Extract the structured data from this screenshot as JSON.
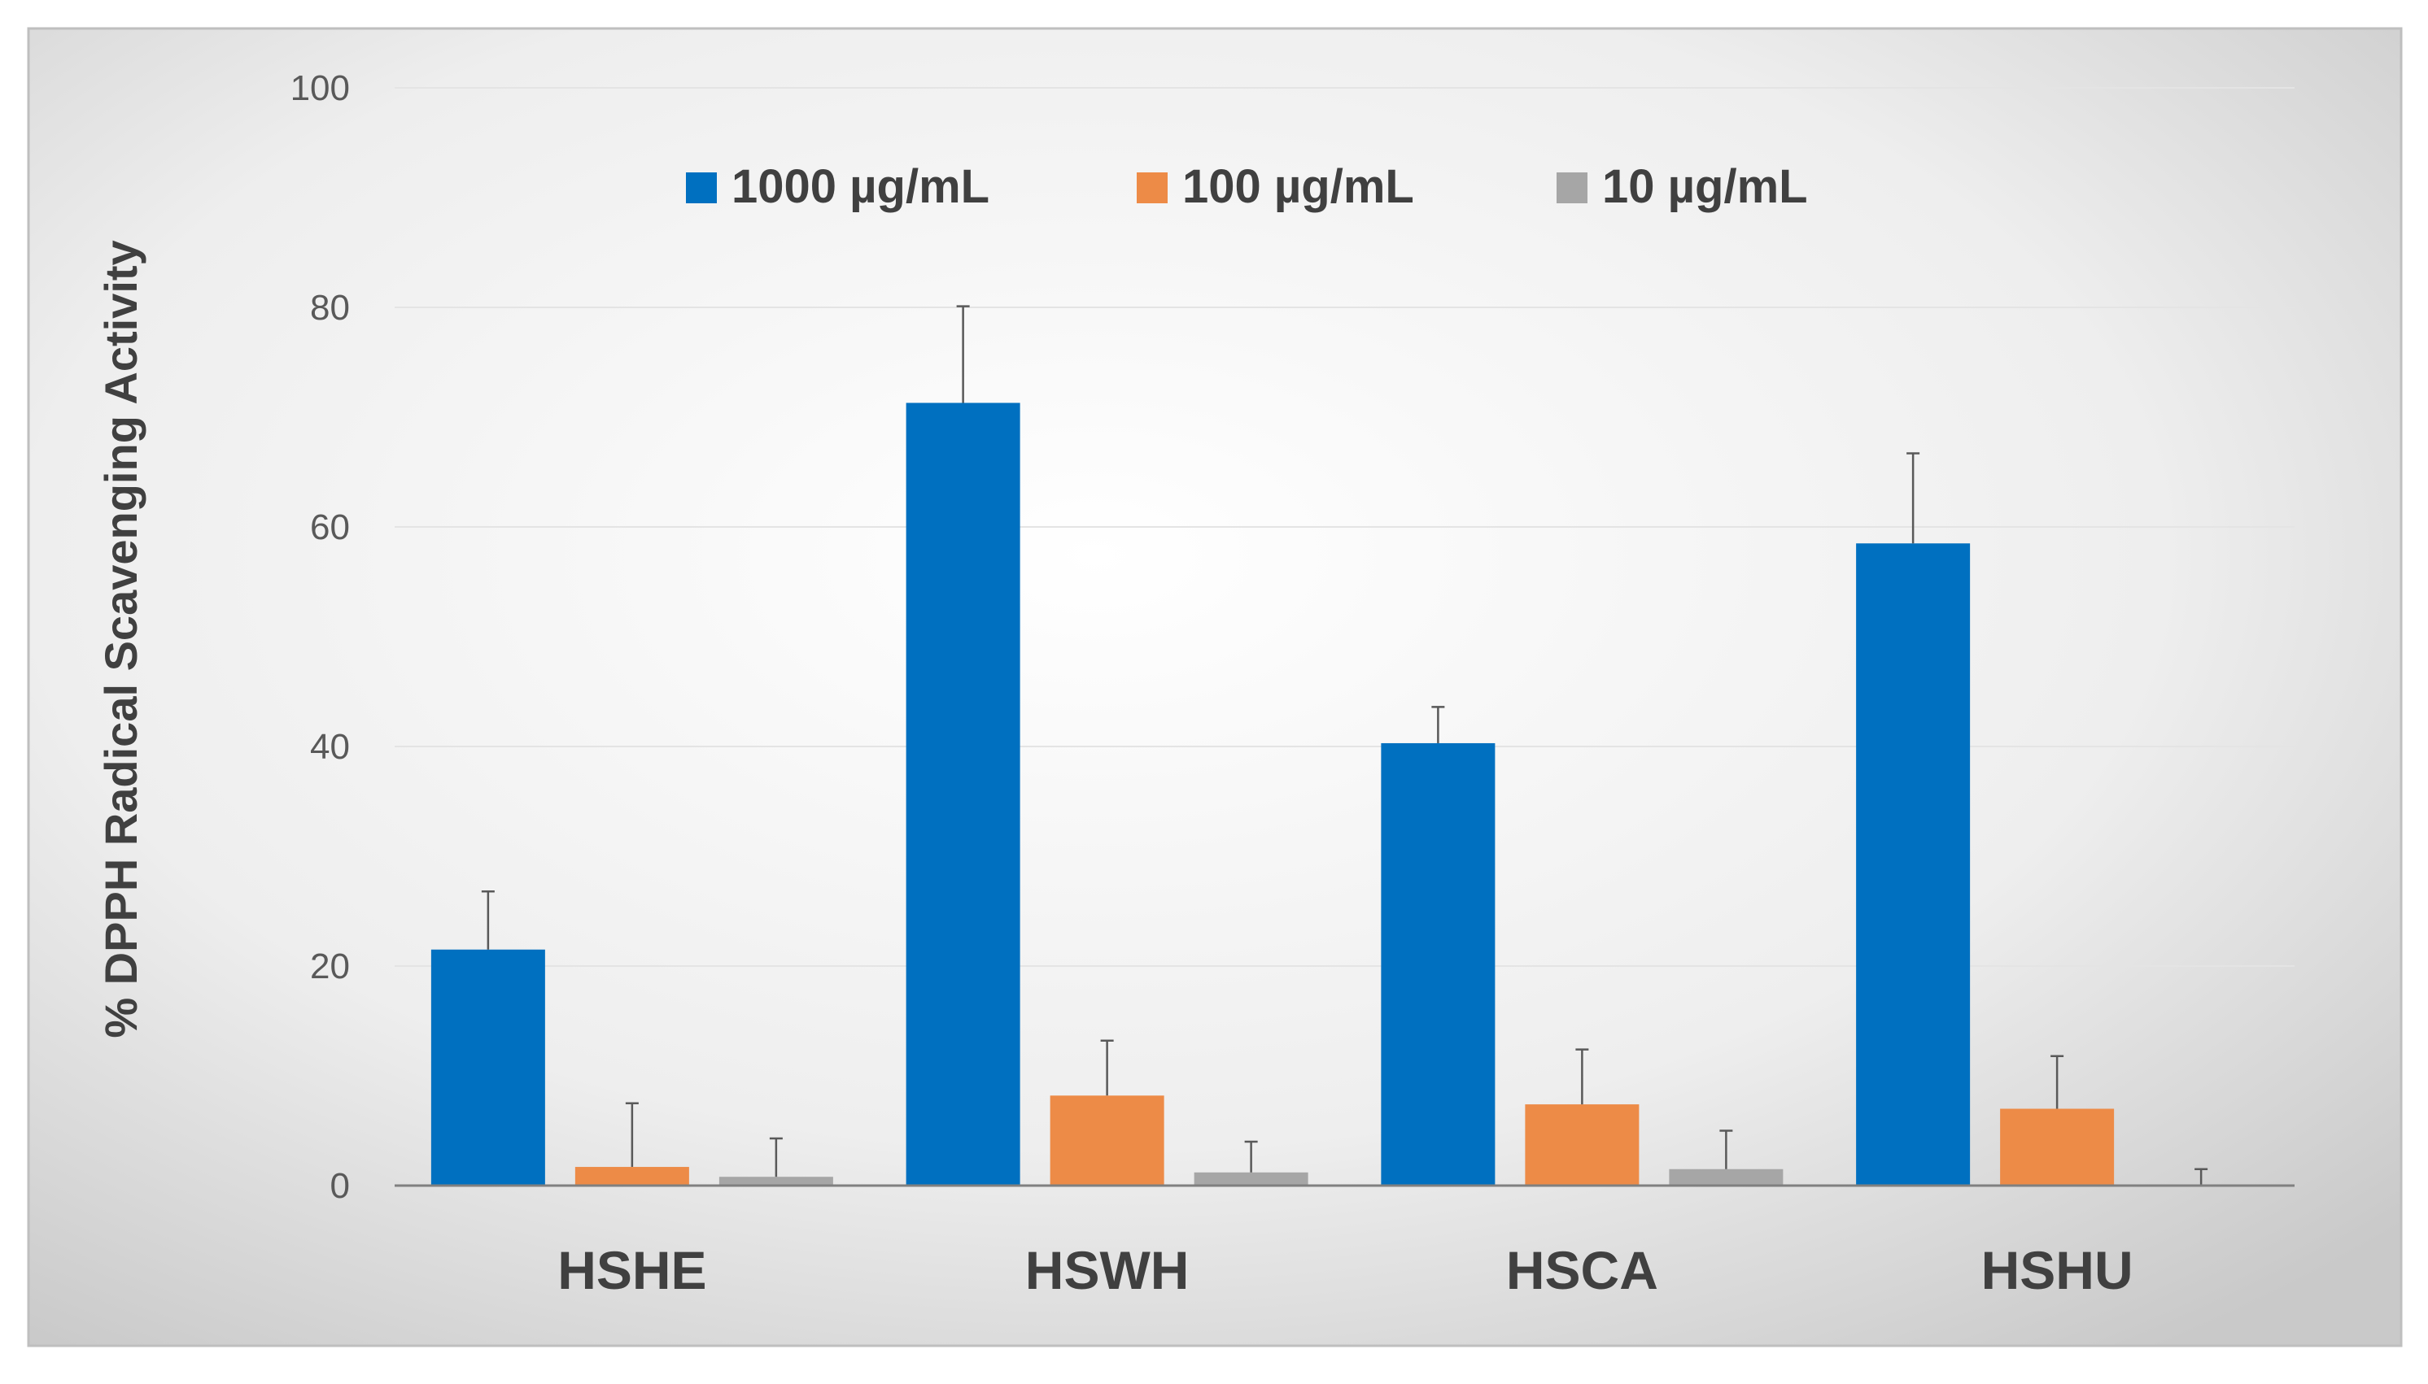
{
  "chart_data": {
    "type": "bar",
    "title": "",
    "xlabel": "",
    "ylabel": "% DPPH Radical Scavenging Activity",
    "ylim": [
      0,
      100
    ],
    "yticks": [
      0,
      20,
      40,
      60,
      80,
      100
    ],
    "grid": true,
    "legend_position": "top-center",
    "categories": [
      "HSHE",
      "HSWH",
      "HSCA",
      "HSHU"
    ],
    "series": [
      {
        "name": "1000 µg/mL",
        "color": "#0070C0",
        "values": [
          21.5,
          71.3,
          40.3,
          58.5
        ],
        "errors": [
          5.3,
          8.8,
          3.3,
          8.2
        ]
      },
      {
        "name": "100 µg/mL",
        "color": "#ED8B47",
        "values": [
          1.7,
          8.2,
          7.4,
          7.0
        ],
        "errors": [
          5.8,
          5.0,
          5.0,
          4.8
        ]
      },
      {
        "name": "10 µg/mL",
        "color": "#A6A6A6",
        "values": [
          0.8,
          1.2,
          1.5,
          0.1
        ],
        "errors": [
          3.5,
          2.8,
          3.5,
          1.4
        ]
      }
    ]
  }
}
